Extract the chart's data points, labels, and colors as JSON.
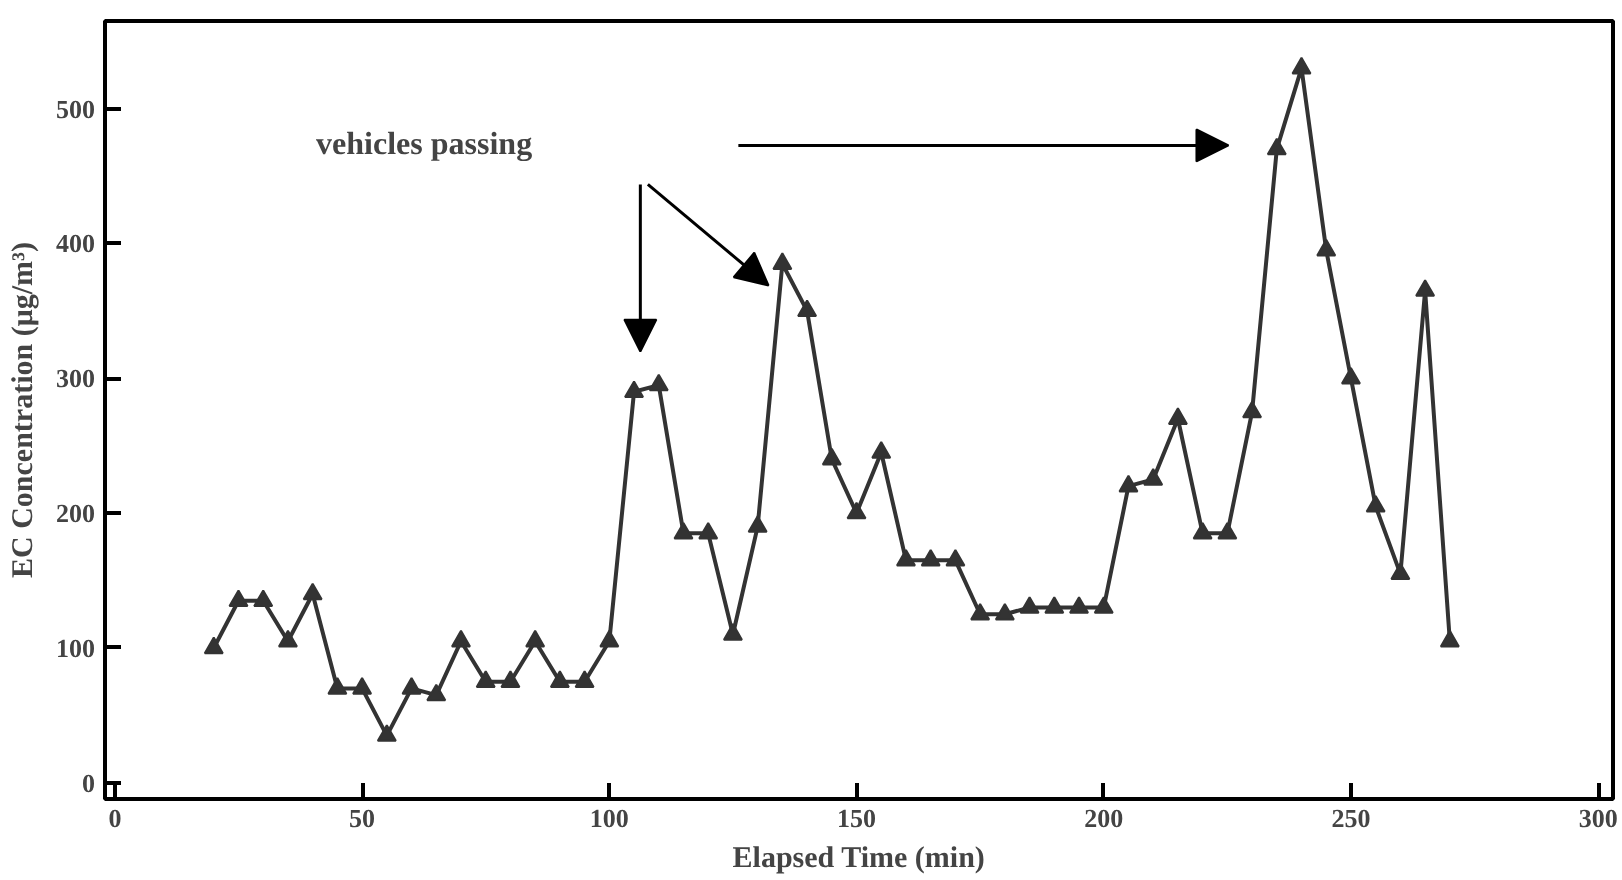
{
  "chart_data": {
    "type": "line",
    "xlabel": "Elapsed Time (min)",
    "ylabel": "EC Concentration (μg/m³)",
    "x": [
      20,
      25,
      30,
      35,
      40,
      45,
      50,
      55,
      60,
      65,
      70,
      75,
      80,
      85,
      90,
      95,
      100,
      105,
      110,
      115,
      120,
      125,
      130,
      135,
      140,
      145,
      150,
      155,
      160,
      165,
      170,
      175,
      180,
      185,
      190,
      195,
      200,
      205,
      210,
      215,
      220,
      225,
      230,
      235,
      240,
      245,
      250,
      255,
      260,
      265,
      270
    ],
    "series": [
      {
        "color": "#333333",
        "values": [
          100,
          135,
          135,
          105,
          140,
          70,
          70,
          35,
          70,
          65,
          105,
          75,
          75,
          105,
          75,
          75,
          105,
          290,
          295,
          185,
          185,
          110,
          190,
          385,
          350,
          240,
          200,
          245,
          165,
          165,
          165,
          125,
          125,
          130,
          130,
          130,
          130,
          220,
          225,
          270,
          185,
          185,
          275,
          470,
          530,
          395,
          300,
          205,
          155,
          365,
          105
        ]
      }
    ],
    "xlim": [
      -2,
      303
    ],
    "ylim": [
      -12,
      565
    ],
    "xticks": [
      0,
      50,
      100,
      150,
      200,
      250,
      300
    ],
    "yticks": [
      0,
      100,
      200,
      300,
      400,
      500
    ],
    "marker": "triangle",
    "line_style": "solid",
    "grid": false,
    "annotations": [
      "vehicles passing"
    ]
  }
}
